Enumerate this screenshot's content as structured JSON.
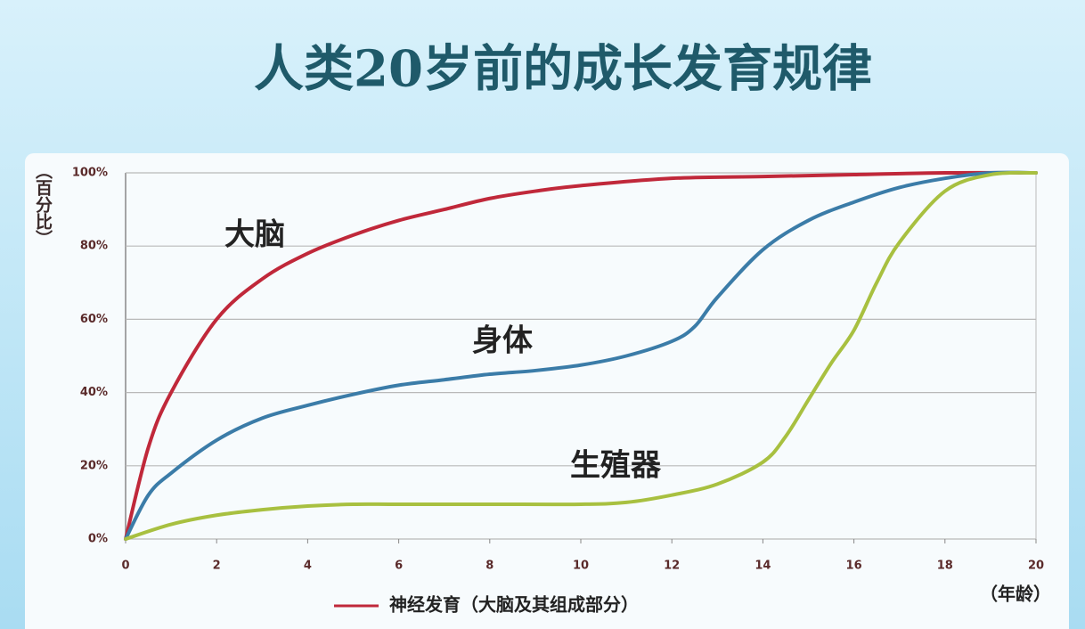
{
  "chart_data": {
    "type": "line",
    "title": "人类20岁前的成长发育规律",
    "y_label": "（百分比）",
    "x_label": "（年龄）",
    "legend_text": "神经发育（大脑及其组成部分）",
    "xlim": [
      0,
      20
    ],
    "xticks": [
      0,
      2,
      4,
      6,
      8,
      10,
      12,
      14,
      16,
      18,
      20
    ],
    "ylim": [
      0,
      100
    ],
    "yticks": [
      {
        "value": 0,
        "label": "0%"
      },
      {
        "value": 20,
        "label": "20%"
      },
      {
        "value": 40,
        "label": "40%"
      },
      {
        "value": 60,
        "label": "60%"
      },
      {
        "value": 80,
        "label": "80%"
      },
      {
        "value": 100,
        "label": "100%"
      }
    ],
    "grid": true,
    "series": [
      {
        "name": "大脑",
        "color": "#c0283a",
        "x": [
          0,
          0.5,
          1,
          2,
          3,
          4,
          5,
          6,
          7,
          8,
          9,
          10,
          12,
          14,
          16,
          18,
          20
        ],
        "values": [
          0,
          25,
          40,
          60,
          71,
          78,
          83,
          87,
          90,
          93,
          95,
          96.5,
          98.5,
          99,
          99.5,
          100,
          100
        ]
      },
      {
        "name": "身体",
        "color": "#3b7ca8",
        "x": [
          0,
          0.5,
          1,
          2,
          3,
          4,
          5,
          6,
          7,
          8,
          9,
          10,
          11,
          12,
          12.5,
          13,
          14,
          15,
          16,
          17,
          18,
          19,
          20
        ],
        "values": [
          0,
          12,
          18,
          27,
          33,
          36.5,
          39.5,
          42,
          43.5,
          45,
          46,
          47.5,
          50,
          54,
          58,
          66,
          79,
          87,
          92,
          96,
          98.5,
          100,
          100
        ]
      },
      {
        "name": "生殖器",
        "color": "#a8c040",
        "x": [
          0,
          1,
          2,
          3,
          4,
          5,
          6,
          8,
          10,
          11,
          12,
          13,
          14,
          14.5,
          15,
          15.5,
          16,
          16.5,
          17,
          18,
          19,
          20
        ],
        "values": [
          0,
          4,
          6.5,
          8,
          9,
          9.5,
          9.5,
          9.5,
          9.5,
          10,
          12,
          15,
          21,
          28,
          38,
          48,
          57,
          70,
          81,
          95,
          99.5,
          100
        ]
      }
    ]
  }
}
